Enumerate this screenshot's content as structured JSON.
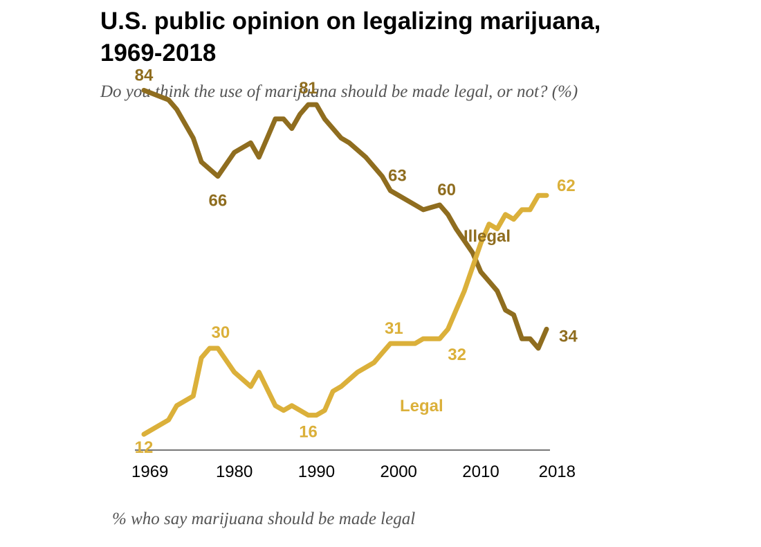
{
  "chart_data": {
    "type": "line",
    "title": "U.S. public opinion on legalizing marijuana, 1969-2018",
    "subtitle": "Do you think the use of marijuana should be made legal, or not? (%)",
    "footnote": "% who say marijuana should be made legal",
    "x_ticks": [
      1969,
      1980,
      1990,
      2000,
      2010,
      2018
    ],
    "xlim": [
      1969,
      2018
    ],
    "ylim": [
      0,
      100
    ],
    "grid": false,
    "series": [
      {
        "name": "Illegal",
        "color": "#8f6d1f",
        "points": [
          [
            1969,
            84
          ],
          [
            1972,
            82
          ],
          [
            1973,
            80
          ],
          [
            1974,
            77
          ],
          [
            1975,
            74
          ],
          [
            1976,
            69
          ],
          [
            1978,
            66
          ],
          [
            1980,
            71
          ],
          [
            1982,
            73
          ],
          [
            1983,
            70
          ],
          [
            1984,
            74
          ],
          [
            1985,
            78
          ],
          [
            1986,
            78
          ],
          [
            1987,
            76
          ],
          [
            1988,
            79
          ],
          [
            1989,
            81
          ],
          [
            1990,
            81
          ],
          [
            1991,
            78
          ],
          [
            1993,
            74
          ],
          [
            1994,
            73
          ],
          [
            1996,
            70
          ],
          [
            1998,
            66
          ],
          [
            1999,
            63
          ],
          [
            2000,
            62
          ],
          [
            2002,
            60
          ],
          [
            2003,
            59
          ],
          [
            2005,
            60
          ],
          [
            2006,
            58
          ],
          [
            2007,
            55
          ],
          [
            2009,
            50
          ],
          [
            2010,
            46
          ],
          [
            2011,
            44
          ],
          [
            2012,
            42
          ],
          [
            2013,
            38
          ],
          [
            2014,
            37
          ],
          [
            2015,
            32
          ],
          [
            2016,
            32
          ],
          [
            2017,
            30
          ],
          [
            2018,
            34
          ]
        ],
        "labels": [
          {
            "text": "84",
            "year": 1969,
            "value": 84
          },
          {
            "text": "66",
            "year": 1978,
            "value": 66
          },
          {
            "text": "81",
            "year": 1989,
            "value": 81
          },
          {
            "text": "63",
            "year": 1999,
            "value": 63
          },
          {
            "text": "60",
            "year": 2005,
            "value": 60
          },
          {
            "text": "34",
            "year": 2018,
            "value": 34
          }
        ]
      },
      {
        "name": "Legal",
        "color": "#dbb03a",
        "points": [
          [
            1969,
            12
          ],
          [
            1972,
            15
          ],
          [
            1973,
            18
          ],
          [
            1975,
            20
          ],
          [
            1976,
            28
          ],
          [
            1977,
            30
          ],
          [
            1978,
            30
          ],
          [
            1980,
            25
          ],
          [
            1982,
            22
          ],
          [
            1983,
            25
          ],
          [
            1985,
            18
          ],
          [
            1986,
            17
          ],
          [
            1987,
            18
          ],
          [
            1988,
            17
          ],
          [
            1989,
            16
          ],
          [
            1990,
            16
          ],
          [
            1991,
            17
          ],
          [
            1992,
            21
          ],
          [
            1993,
            22
          ],
          [
            1995,
            25
          ],
          [
            1997,
            27
          ],
          [
            1998,
            29
          ],
          [
            1999,
            31
          ],
          [
            2001,
            31
          ],
          [
            2002,
            31
          ],
          [
            2003,
            32
          ],
          [
            2005,
            32
          ],
          [
            2006,
            34
          ],
          [
            2007,
            38
          ],
          [
            2008,
            42
          ],
          [
            2009,
            47
          ],
          [
            2010,
            52
          ],
          [
            2011,
            56
          ],
          [
            2012,
            55
          ],
          [
            2013,
            58
          ],
          [
            2014,
            57
          ],
          [
            2015,
            59
          ],
          [
            2016,
            59
          ],
          [
            2017,
            62
          ],
          [
            2018,
            62
          ]
        ],
        "labels": [
          {
            "text": "12",
            "year": 1969,
            "value": 12
          },
          {
            "text": "30",
            "year": 1978,
            "value": 30
          },
          {
            "text": "16",
            "year": 1989,
            "value": 16
          },
          {
            "text": "31",
            "year": 1999,
            "value": 31
          },
          {
            "text": "32",
            "year": 2005,
            "value": 32
          },
          {
            "text": "62",
            "year": 2018,
            "value": 62
          }
        ]
      }
    ]
  }
}
